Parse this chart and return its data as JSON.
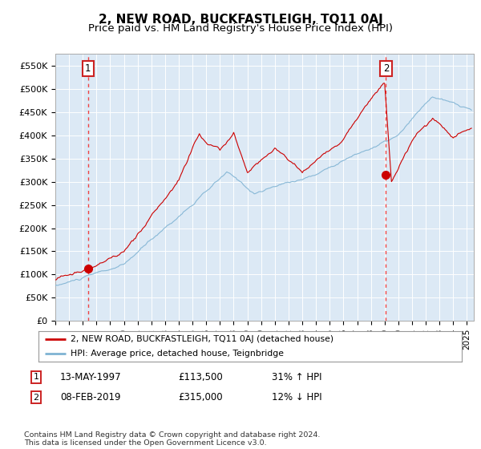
{
  "title": "2, NEW ROAD, BUCKFASTLEIGH, TQ11 0AJ",
  "subtitle": "Price paid vs. HM Land Registry's House Price Index (HPI)",
  "background_color": "#dce9f5",
  "plot_bg_color": "#dce9f5",
  "ylim": [
    0,
    575000
  ],
  "yticks": [
    0,
    50000,
    100000,
    150000,
    200000,
    250000,
    300000,
    350000,
    400000,
    450000,
    500000,
    550000
  ],
  "ytick_labels": [
    "£0",
    "£50K",
    "£100K",
    "£150K",
    "£200K",
    "£250K",
    "£300K",
    "£350K",
    "£400K",
    "£450K",
    "£500K",
    "£550K"
  ],
  "xlim_start": 1995.0,
  "xlim_end": 2025.5,
  "sale1_year": 1997.37,
  "sale1_price": 113500,
  "sale2_year": 2019.1,
  "sale2_price": 315000,
  "legend_line1": "2, NEW ROAD, BUCKFASTLEIGH, TQ11 0AJ (detached house)",
  "legend_line2": "HPI: Average price, detached house, Teignbridge",
  "table_row1": [
    "1",
    "13-MAY-1997",
    "£113,500",
    "31% ↑ HPI"
  ],
  "table_row2": [
    "2",
    "08-FEB-2019",
    "£315,000",
    "12% ↓ HPI"
  ],
  "footnote": "Contains HM Land Registry data © Crown copyright and database right 2024.\nThis data is licensed under the Open Government Licence v3.0.",
  "red_line_color": "#cc0000",
  "blue_line_color": "#7fb3d3",
  "dashed_line_color": "#ee4444",
  "grid_color": "#ffffff",
  "title_fontsize": 11,
  "subtitle_fontsize": 9.5
}
